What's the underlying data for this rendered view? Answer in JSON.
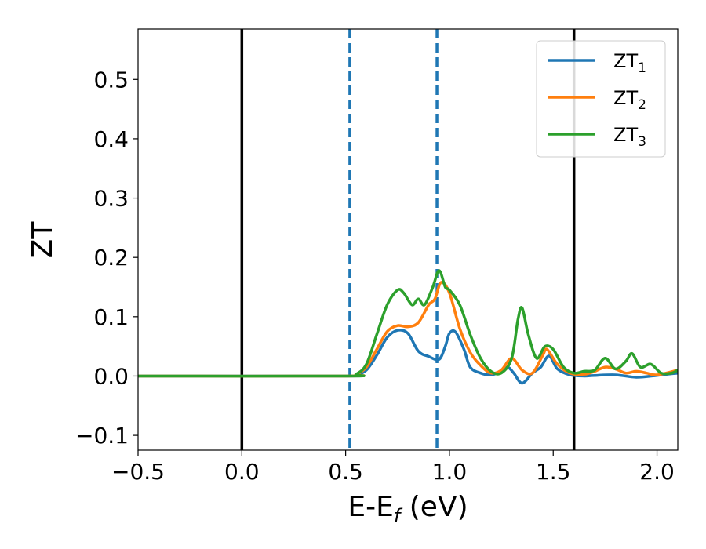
{
  "chart_data": {
    "type": "line",
    "title": "",
    "xlabel": "E-E",
    "xlabel_sub": "f",
    "xlabel_unit": " (eV)",
    "ylabel": "ZT",
    "xlim": [
      -0.5,
      2.1
    ],
    "ylim": [
      -0.125,
      0.585
    ],
    "xticks": [
      -0.5,
      0.0,
      0.5,
      1.0,
      1.5,
      2.0
    ],
    "xtick_labels": [
      "−0.5",
      "0.0",
      "0.5",
      "1.0",
      "1.5",
      "2.0"
    ],
    "yticks": [
      -0.1,
      0.0,
      0.1,
      0.2,
      0.3,
      0.4,
      0.5
    ],
    "ytick_labels": [
      "−0.1",
      "0.0",
      "0.1",
      "0.2",
      "0.3",
      "0.4",
      "0.5"
    ],
    "grid": false,
    "legend_position": "top-right",
    "vlines_solid": [
      0.0,
      1.6
    ],
    "vlines_dashed": [
      0.52,
      0.94
    ],
    "vline_solid_color": "#000000",
    "vline_dashed_color": "#1f77b4",
    "series": [
      {
        "name": "ZT",
        "name_sub": "1",
        "color": "#1f77b4",
        "x": [
          -0.5,
          0.5,
          0.55,
          0.6,
          0.65,
          0.7,
          0.75,
          0.8,
          0.85,
          0.9,
          0.95,
          0.98,
          1.0,
          1.03,
          1.07,
          1.1,
          1.15,
          1.2,
          1.25,
          1.28,
          1.31,
          1.35,
          1.4,
          1.44,
          1.48,
          1.52,
          1.58,
          1.65,
          1.7,
          1.8,
          1.9,
          2.0,
          2.1
        ],
        "y": [
          0.0,
          0.0,
          0.002,
          0.01,
          0.035,
          0.065,
          0.077,
          0.072,
          0.042,
          0.033,
          0.028,
          0.05,
          0.072,
          0.074,
          0.045,
          0.015,
          0.005,
          0.002,
          0.008,
          0.015,
          0.005,
          -0.012,
          0.005,
          0.015,
          0.034,
          0.012,
          0.002,
          0.0,
          0.001,
          0.002,
          -0.002,
          0.001,
          0.005
        ]
      },
      {
        "name": "ZT",
        "name_sub": "2",
        "color": "#ff7f0e",
        "x": [
          -0.5,
          0.5,
          0.55,
          0.6,
          0.65,
          0.7,
          0.75,
          0.8,
          0.85,
          0.9,
          0.93,
          0.96,
          1.0,
          1.05,
          1.1,
          1.15,
          1.2,
          1.25,
          1.3,
          1.35,
          1.4,
          1.45,
          1.47,
          1.52,
          1.58,
          1.65,
          1.7,
          1.75,
          1.8,
          1.85,
          1.9,
          1.95,
          2.0,
          2.1
        ],
        "y": [
          0.0,
          0.0,
          0.003,
          0.015,
          0.045,
          0.075,
          0.085,
          0.083,
          0.09,
          0.12,
          0.13,
          0.158,
          0.14,
          0.08,
          0.04,
          0.018,
          0.005,
          0.01,
          0.03,
          0.01,
          0.005,
          0.035,
          0.045,
          0.02,
          0.005,
          0.003,
          0.008,
          0.015,
          0.012,
          0.005,
          0.008,
          0.005,
          0.002,
          0.01
        ]
      },
      {
        "name": "ZT",
        "name_sub": "3",
        "color": "#2ca02c",
        "x": [
          -0.5,
          0.5,
          0.55,
          0.6,
          0.65,
          0.7,
          0.75,
          0.78,
          0.82,
          0.85,
          0.88,
          0.92,
          0.95,
          0.98,
          1.0,
          1.05,
          1.1,
          1.15,
          1.2,
          1.25,
          1.3,
          1.33,
          1.35,
          1.38,
          1.42,
          1.46,
          1.5,
          1.55,
          1.6,
          1.65,
          1.7,
          1.75,
          1.8,
          1.85,
          1.88,
          1.92,
          1.97,
          2.02,
          2.07,
          2.1
        ],
        "y": [
          0.0,
          0.0,
          0.003,
          0.02,
          0.07,
          0.12,
          0.145,
          0.14,
          0.12,
          0.13,
          0.12,
          0.15,
          0.178,
          0.15,
          0.145,
          0.12,
          0.07,
          0.03,
          0.008,
          0.005,
          0.03,
          0.095,
          0.115,
          0.07,
          0.03,
          0.05,
          0.045,
          0.015,
          0.005,
          0.008,
          0.01,
          0.03,
          0.012,
          0.025,
          0.038,
          0.015,
          0.02,
          0.005,
          0.005,
          0.01
        ]
      }
    ]
  }
}
